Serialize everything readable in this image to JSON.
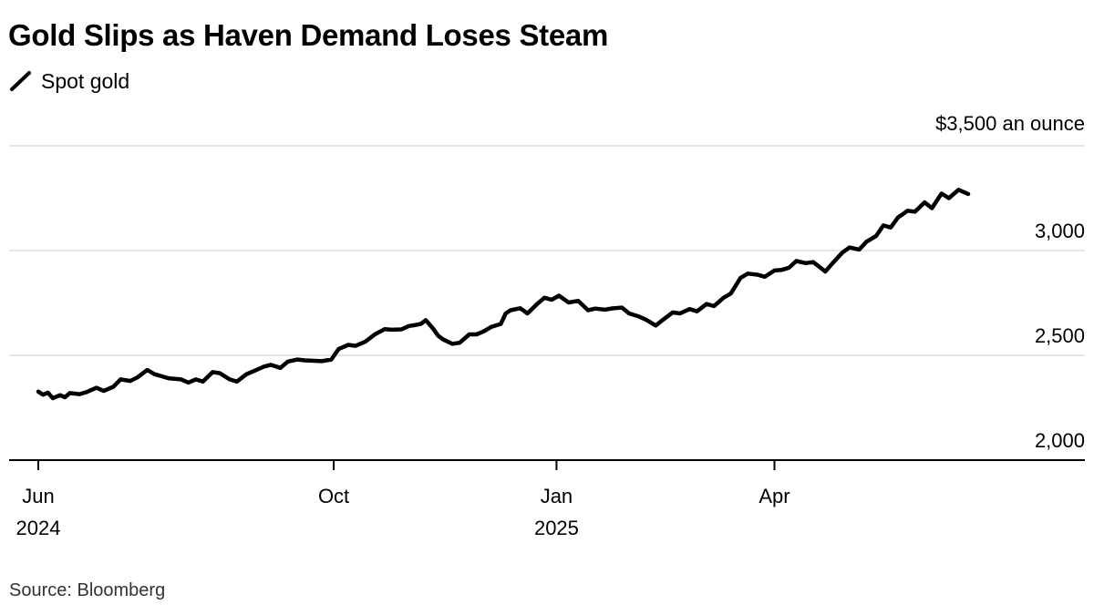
{
  "title": "Gold Slips as Haven Demand Loses Steam",
  "legend": {
    "label": "Spot gold",
    "icon": "line-swatch-icon"
  },
  "source": "Source: Bloomberg",
  "colors": {
    "line": "#000000",
    "grid": "#dddddd",
    "axis": "#000000",
    "background": "#ffffff"
  },
  "chart_data": {
    "type": "line",
    "title": "Gold Slips as Haven Demand Loses Steam",
    "unit_label": "$3,500 an ounce",
    "y_tick_labels": [
      "3,000",
      "2,500",
      "2,000"
    ],
    "y_ticks": [
      3500,
      3000,
      2500,
      2000
    ],
    "ylim": [
      2000,
      3500
    ],
    "xlim": [
      "2024-06-01",
      "2025-06-20"
    ],
    "x_ticks": [
      {
        "date": "2024-06-01",
        "label": "Jun",
        "year": "2024"
      },
      {
        "date": "2024-10-01",
        "label": "Oct",
        "year": ""
      },
      {
        "date": "2025-01-01",
        "label": "Jan",
        "year": "2025"
      },
      {
        "date": "2025-04-01",
        "label": "Apr",
        "year": ""
      }
    ],
    "grid": true,
    "y_axis_side": "right",
    "series": [
      {
        "name": "Spot gold",
        "color": "#000000",
        "points": [
          [
            "2024-06-01",
            2327
          ],
          [
            "2024-06-03",
            2312
          ],
          [
            "2024-06-05",
            2322
          ],
          [
            "2024-06-07",
            2295
          ],
          [
            "2024-06-10",
            2310
          ],
          [
            "2024-06-12",
            2300
          ],
          [
            "2024-06-14",
            2320
          ],
          [
            "2024-06-18",
            2315
          ],
          [
            "2024-06-21",
            2325
          ],
          [
            "2024-06-25",
            2345
          ],
          [
            "2024-06-28",
            2330
          ],
          [
            "2024-07-02",
            2350
          ],
          [
            "2024-07-05",
            2385
          ],
          [
            "2024-07-09",
            2378
          ],
          [
            "2024-07-12",
            2395
          ],
          [
            "2024-07-16",
            2430
          ],
          [
            "2024-07-19",
            2410
          ],
          [
            "2024-07-22",
            2400
          ],
          [
            "2024-07-25",
            2390
          ],
          [
            "2024-07-30",
            2385
          ],
          [
            "2024-08-02",
            2370
          ],
          [
            "2024-08-05",
            2385
          ],
          [
            "2024-08-08",
            2375
          ],
          [
            "2024-08-12",
            2420
          ],
          [
            "2024-08-15",
            2415
          ],
          [
            "2024-08-19",
            2385
          ],
          [
            "2024-08-22",
            2375
          ],
          [
            "2024-08-26",
            2410
          ],
          [
            "2024-08-29",
            2425
          ],
          [
            "2024-09-02",
            2445
          ],
          [
            "2024-09-05",
            2455
          ],
          [
            "2024-09-09",
            2440
          ],
          [
            "2024-09-12",
            2470
          ],
          [
            "2024-09-16",
            2480
          ],
          [
            "2024-09-19",
            2476
          ],
          [
            "2024-09-23",
            2474
          ],
          [
            "2024-09-26",
            2472
          ],
          [
            "2024-09-30",
            2480
          ],
          [
            "2024-10-03",
            2530
          ],
          [
            "2024-10-07",
            2550
          ],
          [
            "2024-10-10",
            2545
          ],
          [
            "2024-10-14",
            2565
          ],
          [
            "2024-10-18",
            2600
          ],
          [
            "2024-10-22",
            2625
          ],
          [
            "2024-10-25",
            2622
          ],
          [
            "2024-10-29",
            2624
          ],
          [
            "2024-11-01",
            2640
          ],
          [
            "2024-11-04",
            2645
          ],
          [
            "2024-11-06",
            2650
          ],
          [
            "2024-11-08",
            2668
          ],
          [
            "2024-11-11",
            2628
          ],
          [
            "2024-11-13",
            2595
          ],
          [
            "2024-11-15",
            2577
          ],
          [
            "2024-11-19",
            2555
          ],
          [
            "2024-11-22",
            2560
          ],
          [
            "2024-11-26",
            2600
          ],
          [
            "2024-11-29",
            2600
          ],
          [
            "2024-12-02",
            2615
          ],
          [
            "2024-12-05",
            2635
          ],
          [
            "2024-12-09",
            2650
          ],
          [
            "2024-12-11",
            2700
          ],
          [
            "2024-12-13",
            2715
          ],
          [
            "2024-12-17",
            2725
          ],
          [
            "2024-12-20",
            2700
          ],
          [
            "2024-12-24",
            2745
          ],
          [
            "2024-12-27",
            2775
          ],
          [
            "2024-12-30",
            2765
          ],
          [
            "2025-01-02",
            2785
          ],
          [
            "2025-01-06",
            2752
          ],
          [
            "2025-01-10",
            2760
          ],
          [
            "2025-01-14",
            2715
          ],
          [
            "2025-01-17",
            2723
          ],
          [
            "2025-01-21",
            2718
          ],
          [
            "2025-01-24",
            2724
          ],
          [
            "2025-01-28",
            2728
          ],
          [
            "2025-01-31",
            2700
          ],
          [
            "2025-02-04",
            2685
          ],
          [
            "2025-02-07",
            2670
          ],
          [
            "2025-02-11",
            2642
          ],
          [
            "2025-02-14",
            2670
          ],
          [
            "2025-02-18",
            2705
          ],
          [
            "2025-02-21",
            2700
          ],
          [
            "2025-02-25",
            2721
          ],
          [
            "2025-02-28",
            2710
          ],
          [
            "2025-03-04",
            2745
          ],
          [
            "2025-03-07",
            2735
          ],
          [
            "2025-03-11",
            2775
          ],
          [
            "2025-03-14",
            2795
          ],
          [
            "2025-03-18",
            2870
          ],
          [
            "2025-03-21",
            2890
          ],
          [
            "2025-03-25",
            2885
          ],
          [
            "2025-03-28",
            2875
          ],
          [
            "2025-04-01",
            2905
          ],
          [
            "2025-04-04",
            2908
          ],
          [
            "2025-04-07",
            2918
          ],
          [
            "2025-04-10",
            2950
          ],
          [
            "2025-04-14",
            2940
          ],
          [
            "2025-04-17",
            2945
          ],
          [
            "2025-04-22",
            2900
          ],
          [
            "2025-04-25",
            2940
          ],
          [
            "2025-04-29",
            2990
          ],
          [
            "2025-05-02",
            3015
          ],
          [
            "2025-05-06",
            3005
          ],
          [
            "2025-05-09",
            3042
          ],
          [
            "2025-05-13",
            3070
          ],
          [
            "2025-05-16",
            3120
          ],
          [
            "2025-05-19",
            3110
          ],
          [
            "2025-05-22",
            3158
          ],
          [
            "2025-05-26",
            3190
          ],
          [
            "2025-05-29",
            3185
          ],
          [
            "2025-06-02",
            3230
          ],
          [
            "2025-06-05",
            3202
          ],
          [
            "2025-06-09",
            3272
          ],
          [
            "2025-06-12",
            3250
          ],
          [
            "2025-06-16",
            3290
          ],
          [
            "2025-06-20",
            3270
          ]
        ]
      }
    ]
  }
}
